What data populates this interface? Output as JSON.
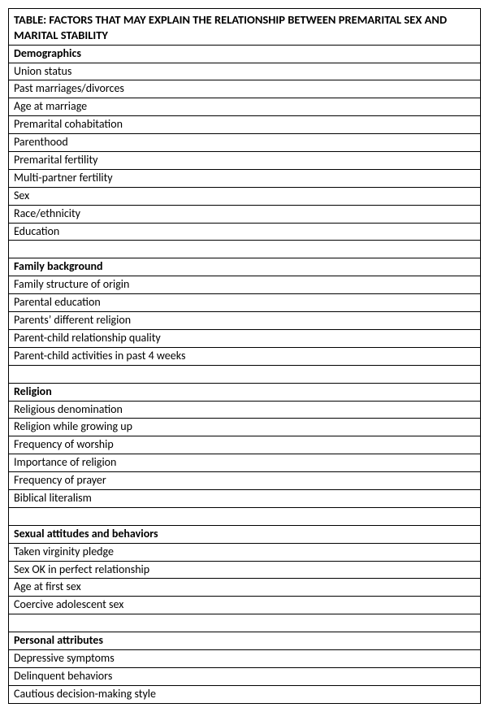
{
  "title": "TABLE: FACTORS THAT MAY EXPLAIN THE RELATIONSHIP BETWEEN PREMARITAL SEX AND MARITAL STABILITY",
  "sections": {
    "demographics": {
      "header": "Demographics",
      "rows": [
        "Union status",
        "Past marriages/divorces",
        "Age at marriage",
        "Premarital cohabitation",
        "Parenthood",
        "Premarital fertility",
        "Multi-partner fertility",
        "Sex",
        "Race/ethnicity",
        "Education"
      ]
    },
    "family": {
      "header": "Family background",
      "rows": [
        "Family structure of origin",
        "Parental education",
        "Parents’ different religion",
        "Parent-child relationship quality",
        "Parent-child activities in past 4 weeks"
      ]
    },
    "religion": {
      "header": "Religion",
      "rows": [
        "Religious denomination",
        "Religion while growing up",
        "Frequency of worship",
        "Importance of religion",
        "Frequency of prayer",
        "Biblical literalism"
      ]
    },
    "sexual": {
      "header": "Sexual attitudes and behaviors",
      "rows": [
        "Taken virginity pledge",
        "Sex OK in perfect relationship",
        "Age at first sex",
        "Coercive adolescent sex"
      ]
    },
    "personal": {
      "header": "Personal attributes",
      "rows": [
        "Depressive symptoms",
        "Delinquent behaviors",
        "Cautious decision-making style"
      ]
    }
  },
  "style": {
    "font_family": "Calibri, 'Segoe UI', Arial, sans-serif",
    "title_fontsize": 14.5,
    "row_fontsize": 14,
    "border_color": "#000000",
    "background_color": "#ffffff",
    "bold_weight": "bold"
  }
}
